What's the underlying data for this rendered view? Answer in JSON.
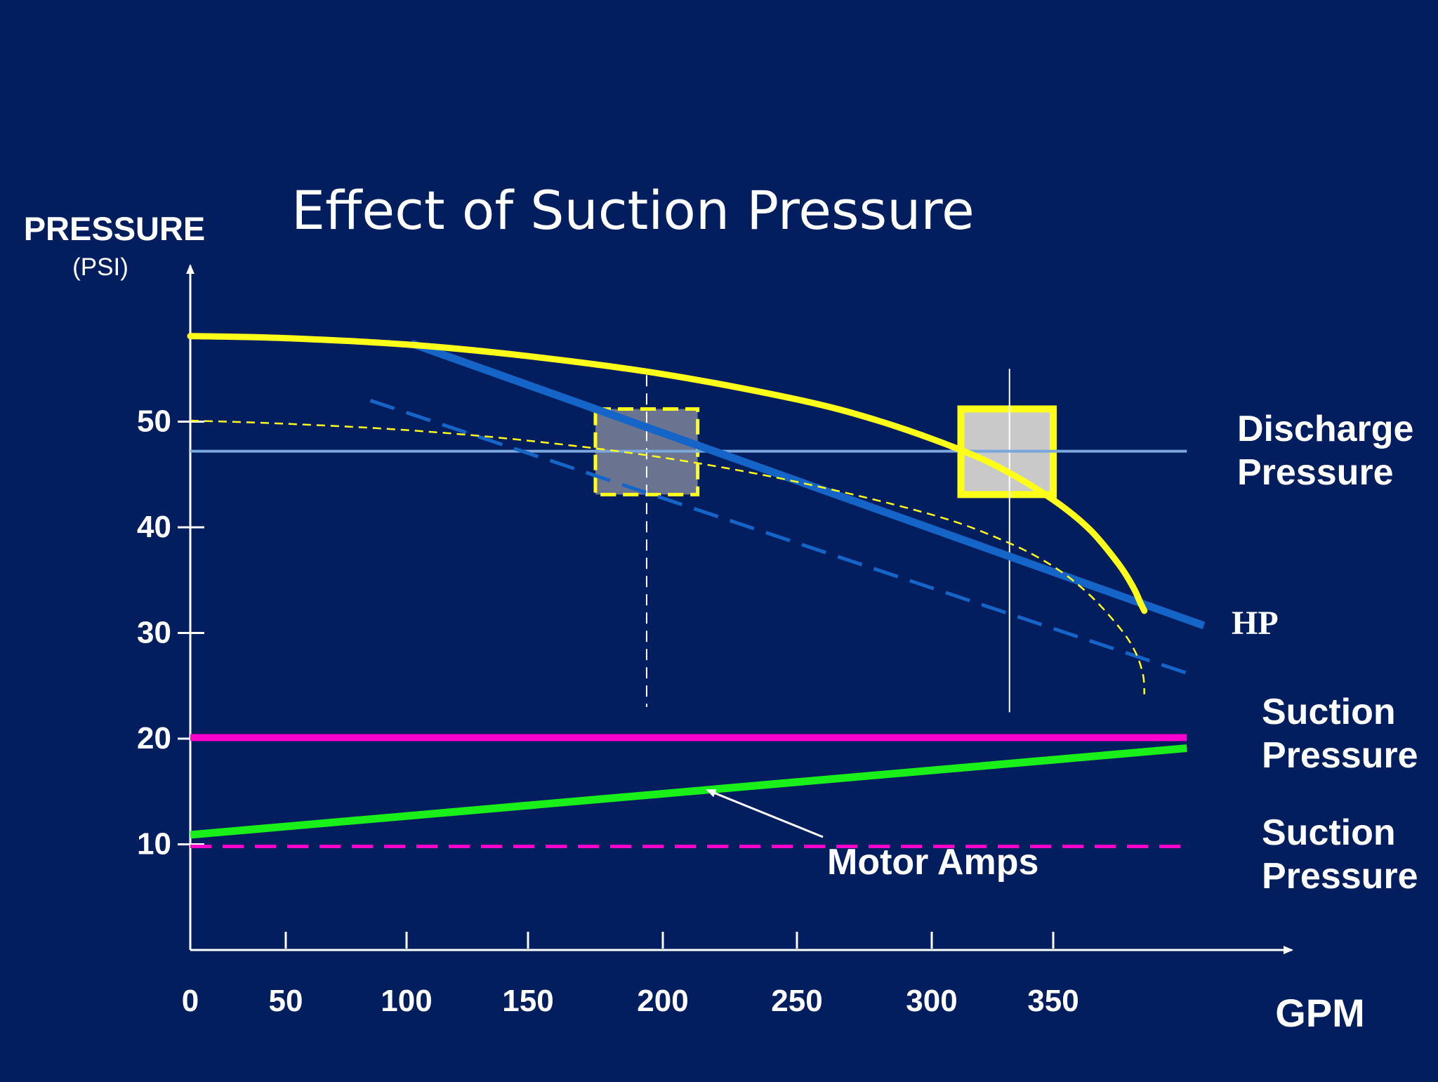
{
  "colors": {
    "background": "#021e5e",
    "axis": "#ffffff",
    "pump_curve": "#ffff1a",
    "hp_line": "#1565c8",
    "discharge_line": "#7aa7dc",
    "suction_line": "#ff00cc",
    "motor_amps": "#19f019",
    "box_fill_solid": "#c9c9c9",
    "box_fill_dashed": "#6a7390"
  },
  "chart_data": {
    "type": "line",
    "title": "Effect of Suction Pressure",
    "ylabel": "PRESSURE",
    "yunit": "(PSI)",
    "xlabel": "GPM",
    "xlim": [
      0,
      405
    ],
    "ylim": [
      0,
      61
    ],
    "x_ticks": [
      0,
      50,
      100,
      150,
      200,
      250,
      300,
      350
    ],
    "x_tick_labels": [
      "0",
      "50",
      "100",
      "150",
      "200",
      "250",
      "300",
      "350"
    ],
    "y_ticks": [
      10,
      20,
      30,
      40,
      50
    ],
    "y_tick_labels": [
      "10",
      "20",
      "30",
      "40",
      "50"
    ],
    "grid": false,
    "series": [
      {
        "key": "pump_curve_high",
        "style": "solid-yellow",
        "points": [
          [
            0,
            58.1
          ],
          [
            50,
            57.9
          ],
          [
            100,
            57.3
          ],
          [
            150,
            56.2
          ],
          [
            200,
            54.5
          ],
          [
            250,
            52.1
          ],
          [
            280,
            50.1
          ],
          [
            310,
            47.5
          ],
          [
            330,
            45.4
          ],
          [
            350,
            42.6
          ],
          [
            365,
            39.8
          ],
          [
            377,
            36.5
          ],
          [
            383,
            34.3
          ],
          [
            386,
            32.8
          ],
          [
            387.5,
            32.1
          ]
        ]
      },
      {
        "key": "pump_curve_low",
        "style": "dashed-yellow",
        "points": [
          [
            0,
            50.1
          ],
          [
            50,
            49.8
          ],
          [
            100,
            49.2
          ],
          [
            150,
            48.2
          ],
          [
            200,
            46.6
          ],
          [
            250,
            44.3
          ],
          [
            300,
            41.2
          ],
          [
            330,
            38.7
          ],
          [
            350,
            36.3
          ],
          [
            365,
            33.6
          ],
          [
            378,
            30.3
          ],
          [
            384,
            28.1
          ],
          [
            387,
            26.0
          ],
          [
            387.5,
            24.2
          ]
        ]
      },
      {
        "key": "hp_high",
        "style": "solid-blue",
        "points": [
          [
            102,
            57.4
          ],
          [
            412,
            30.7
          ]
        ]
      },
      {
        "key": "hp_low",
        "style": "dashed-blue",
        "points": [
          [
            85,
            52.0
          ],
          [
            405,
            26.2
          ]
        ]
      },
      {
        "key": "discharge_pressure",
        "style": "solid-lightblue",
        "points": [
          [
            0,
            47.2
          ],
          [
            405,
            47.2
          ]
        ]
      },
      {
        "key": "suction_pressure_high",
        "style": "solid-magenta",
        "points": [
          [
            0,
            20.1
          ],
          [
            405,
            20.1
          ]
        ]
      },
      {
        "key": "suction_pressure_low",
        "style": "dashed-magenta",
        "points": [
          [
            0,
            9.8
          ],
          [
            405,
            9.8
          ]
        ]
      },
      {
        "key": "motor_amps",
        "style": "solid-green",
        "points": [
          [
            0,
            10.9
          ],
          [
            405,
            19.1
          ]
        ]
      }
    ],
    "operating_points": [
      {
        "style": "dashed",
        "x": 194,
        "y": 47.2,
        "x_from": 175,
        "x_to": 213,
        "y_from": 43.1,
        "y_to": 51.2,
        "guide_y_from": 23.0,
        "guide_y_to": 54.4
      },
      {
        "style": "solid",
        "x": 332,
        "y": 47.2,
        "x_from": 312,
        "x_to": 350,
        "y_from": 43.1,
        "y_to": 51.2,
        "guide_y_from": 22.5,
        "guide_y_to": 55.0
      }
    ],
    "annotations": {
      "discharge_line1": "Discharge",
      "discharge_line2": "Pressure",
      "hp": "HP",
      "suction_high_line1": "Suction",
      "suction_high_line2": "Pressure",
      "suction_low_line1": "Suction",
      "suction_low_line2": "Pressure",
      "motor_amps": "Motor Amps"
    },
    "motor_amps_arrow_target": [
      215,
      15.0
    ]
  }
}
